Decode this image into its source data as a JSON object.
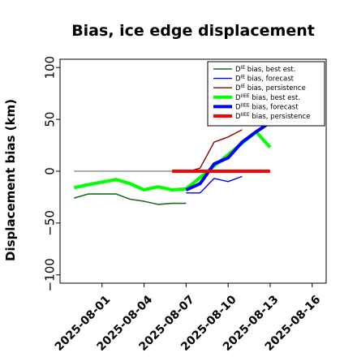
{
  "chart_data": {
    "type": "line",
    "title": "Bias, ice edge displacement",
    "xlabel": "",
    "ylabel": "Displacement bias (km)",
    "ylim": [
      -108,
      108
    ],
    "xlim": [
      "2025-07-29",
      "2025-08-17"
    ],
    "yticks": [
      -100,
      -50,
      0,
      50,
      100
    ],
    "ytick_labels": [
      "−100",
      "−50",
      "0",
      "50",
      "100"
    ],
    "xticks": [
      {
        "date": "2025-08-01",
        "label": "2025-08-01",
        "color": "#000000"
      },
      {
        "date": "2025-08-04",
        "label": "2025-08-04",
        "color": "#000000"
      },
      {
        "date": "2025-08-07",
        "label": "2025-08-07",
        "color": "#228b22"
      },
      {
        "date": "2025-08-10",
        "label": "2025-08-10",
        "color": "#000000"
      },
      {
        "date": "2025-08-13",
        "label": "2025-08-13",
        "color": "#000000"
      },
      {
        "date": "2025-08-16",
        "label": "2025-08-16",
        "color": "#000000"
      }
    ],
    "grid": false,
    "legend_position": "top-right",
    "zero_line": {
      "x": [
        "2025-07-30",
        "2025-08-06"
      ],
      "y": 0,
      "color": "#777777"
    },
    "series": [
      {
        "name": "D^IE bias, best est.",
        "color": "#1e6b1e",
        "width": 1.6,
        "x": [
          "2025-07-30",
          "2025-07-31",
          "2025-08-02",
          "2025-08-03",
          "2025-08-04",
          "2025-08-05",
          "2025-08-06",
          "2025-08-07"
        ],
        "y": [
          -26,
          -22,
          -22,
          -27,
          -29,
          -32,
          -31,
          -31
        ]
      },
      {
        "name": "D^IE bias, forecast",
        "color": "#0000ff",
        "width": 1.4,
        "x": [
          "2025-08-07",
          "2025-08-08",
          "2025-08-09",
          "2025-08-10",
          "2025-08-11"
        ],
        "y": [
          -21,
          -21,
          -7,
          -10,
          -5
        ]
      },
      {
        "name": "D^IE bias, persistence",
        "color": "#8b0000",
        "width": 1.4,
        "x": [
          "2025-08-07",
          "2025-08-08",
          "2025-08-09",
          "2025-08-10",
          "2025-08-11"
        ],
        "y": [
          -1,
          3,
          28,
          33,
          40
        ]
      },
      {
        "name": "D^IIEE bias, best est.",
        "color": "#00ff00",
        "width": 4,
        "x": [
          "2025-07-30",
          "2025-07-31",
          "2025-08-02",
          "2025-08-03",
          "2025-08-04",
          "2025-08-05",
          "2025-08-06",
          "2025-08-07",
          "2025-08-12",
          "2025-08-13"
        ],
        "y": [
          -16,
          -13,
          -8,
          -12,
          -18,
          -15,
          -18,
          -17,
          38,
          23
        ]
      },
      {
        "name": "D^IIEE bias, forecast",
        "color": "#0000ff",
        "width": 4,
        "x": [
          "2025-08-07",
          "2025-08-08",
          "2025-08-09",
          "2025-08-10",
          "2025-08-11",
          "2025-08-12",
          "2025-08-13"
        ],
        "y": [
          -18,
          -12,
          7,
          13,
          28,
          38,
          47
        ]
      },
      {
        "name": "D^IIEE bias, persistence",
        "color": "#ff0000",
        "width": 4,
        "x": [
          "2025-08-06",
          "2025-08-07",
          "2025-08-08",
          "2025-08-09",
          "2025-08-10",
          "2025-08-11",
          "2025-08-12",
          "2025-08-13"
        ],
        "y": [
          0,
          0,
          0,
          0,
          0,
          0,
          0,
          0
        ]
      }
    ],
    "legend": [
      {
        "base": "D",
        "sup": "IE",
        "rest": " bias, best est.",
        "color": "#1e6b1e",
        "width": 1.6
      },
      {
        "base": "D",
        "sup": "IE",
        "rest": " bias, forecast",
        "color": "#0000ff",
        "width": 1.4
      },
      {
        "base": "D",
        "sup": "IE",
        "rest": " bias, persistence",
        "color": "#8b0000",
        "width": 1.4
      },
      {
        "base": "D",
        "sup": "IIEE",
        "rest": " bias, best est.",
        "color": "#00ff00",
        "width": 4
      },
      {
        "base": "D",
        "sup": "IIEE",
        "rest": " bias, forecast",
        "color": "#0000ff",
        "width": 4
      },
      {
        "base": "D",
        "sup": "IIEE",
        "rest": " bias, persistence",
        "color": "#ff0000",
        "width": 4
      }
    ]
  }
}
